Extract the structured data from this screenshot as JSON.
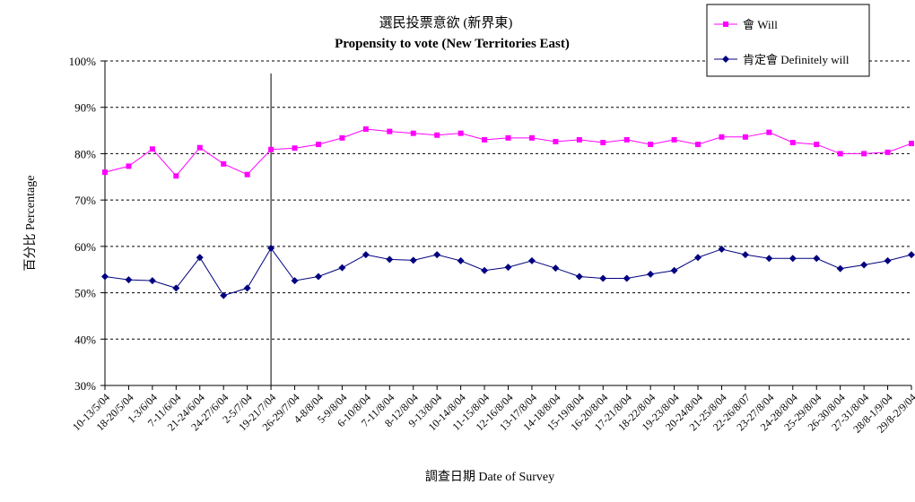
{
  "chart_data": {
    "type": "line",
    "title": "選民投票意欲 (新界東)",
    "subtitle": "Propensity to vote (New Territories East)",
    "xlabel": "調查日期 Date of Survey",
    "ylabel": "百分比 Percentage",
    "ylim": [
      30,
      100
    ],
    "yticks": [
      "30%",
      "40%",
      "50%",
      "60%",
      "70%",
      "80%",
      "90%",
      "100%"
    ],
    "grid": true,
    "legend": "top-right",
    "categories": [
      "10-13/5/04",
      "18-20/5/04",
      "1-3/6/04",
      "7-11/6/04",
      "21-24/6/04",
      "24-27/6/04",
      "2-5/7/04",
      "19-21/7/04",
      "26-29/7/04",
      "4-8/8/04",
      "5-9/8/04",
      "6-10/8/04",
      "7-11/8/04",
      "8-12/8/04",
      "9-13/8/04",
      "10-14/8/04",
      "11-15/8/04",
      "12-16/8/04",
      "13-17/8/04",
      "14-18/8/04",
      "15-19/8/04",
      "16-20/8/04",
      "17-21/8/04",
      "18-22/8/04",
      "19-23/8/04",
      "20-24/8/04",
      "21-25/8/04",
      "22-26/8/07",
      "23-27/8/04",
      "24-28/8/04",
      "25-29/8/04",
      "26-30/8/04",
      "27-31/8/04",
      "28/8-1/9/04",
      "29/8-2/9/04"
    ],
    "series": [
      {
        "name": "會 Will",
        "color": "#ff00ff",
        "marker": "square",
        "values": [
          76.0,
          77.3,
          81.0,
          75.2,
          81.3,
          77.8,
          75.5,
          80.9,
          81.2,
          82.0,
          83.4,
          85.3,
          84.8,
          84.4,
          84.0,
          84.4,
          83.0,
          83.4,
          83.4,
          82.6,
          83.0,
          82.4,
          83.0,
          82.0,
          83.0,
          82.0,
          83.6,
          83.6,
          84.6,
          82.4,
          82.0,
          80.0,
          80.0,
          80.3,
          82.2
        ]
      },
      {
        "name": "肯定會 Definitely will",
        "color": "#000080",
        "marker": "diamond",
        "values": [
          53.5,
          52.8,
          52.6,
          51.0,
          57.6,
          49.4,
          51.0,
          59.6,
          52.6,
          53.5,
          55.4,
          58.2,
          57.2,
          57.0,
          58.2,
          56.9,
          54.8,
          55.5,
          56.9,
          55.3,
          53.5,
          53.1,
          53.1,
          54.0,
          54.8,
          57.6,
          59.4,
          58.2,
          57.4,
          57.4,
          57.4,
          55.2,
          56.0,
          56.9,
          58.2
        ]
      }
    ],
    "vertical_marker_after": "19-21/7/04"
  }
}
